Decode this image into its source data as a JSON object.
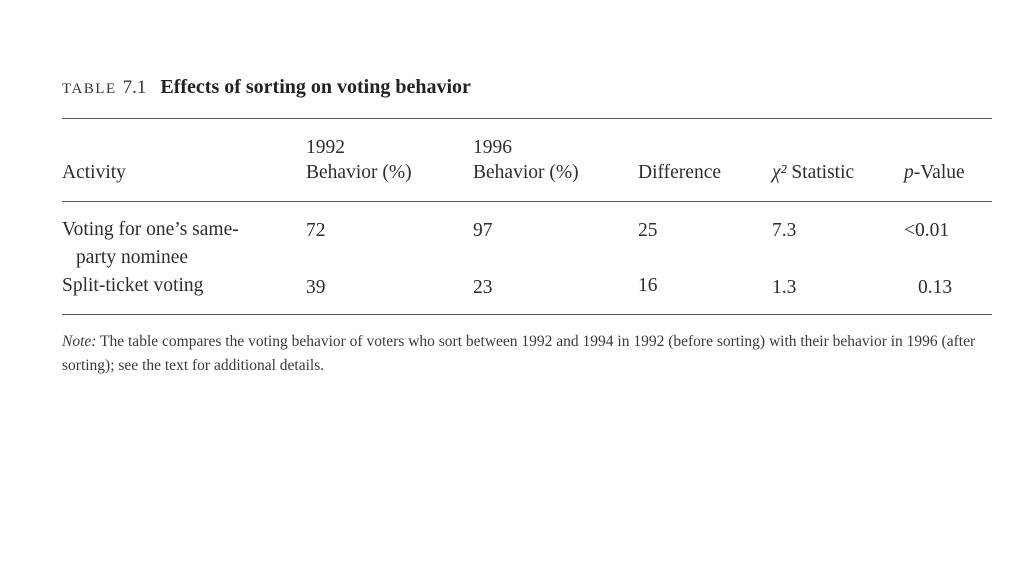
{
  "caption": {
    "label": "TABLE",
    "number": "7.1",
    "title": "Effects of sorting on voting behavior"
  },
  "table": {
    "headers": {
      "activity": "Activity",
      "col1992_year": "1992",
      "col1992_label": "Behavior (%)",
      "col1996_year": "1996",
      "col1996_label": "Behavior (%)",
      "difference": "Difference",
      "chi_symbol": "χ²",
      "chi_label": "Statistic",
      "p_symbol": "p",
      "p_label": "-Value"
    },
    "rows": [
      {
        "activity_line1": "Voting for one’s same-",
        "activity_line2": "party nominee",
        "b1992": "72",
        "b1996": "97",
        "difference": "25",
        "chi2": "7.3",
        "p": "<0.01"
      },
      {
        "activity_line1": "Split-ticket voting",
        "b1992": "39",
        "b1996": "23",
        "difference": "16",
        "chi2": "1.3",
        "p": "0.13"
      }
    ]
  },
  "note": {
    "label": "Note:",
    "text": " The table compares the voting behavior of voters who sort between 1992 and 1994 in 1992 (before sorting) with their behavior in 1996 (after sorting); see the text for additional details."
  }
}
